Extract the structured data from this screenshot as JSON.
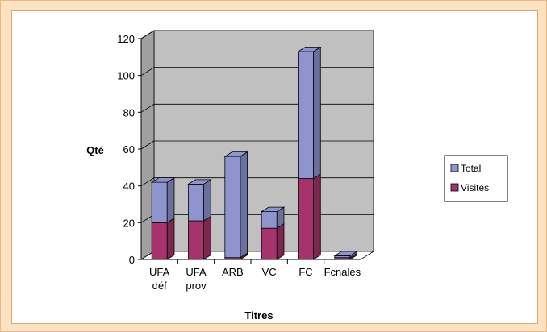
{
  "chart_data": {
    "type": "bar",
    "stacked": true,
    "three_d": true,
    "categories": [
      [
        "UFA",
        "déf"
      ],
      [
        "UFA",
        "prov"
      ],
      [
        "ARB"
      ],
      [
        "VC"
      ],
      [
        "FC"
      ],
      [
        "Fcnales"
      ]
    ],
    "series": [
      {
        "name": "Visités",
        "color": "#a6336b",
        "values": [
          20,
          21,
          1,
          17,
          44,
          1
        ]
      },
      {
        "name": "Total",
        "color": "#8f94cf",
        "values": [
          22,
          20,
          55,
          9,
          69,
          1
        ]
      }
    ],
    "ylabel": "Qté",
    "xlabel": "Titres",
    "ylim": [
      0,
      120
    ],
    "yticks": [
      0,
      20,
      40,
      60,
      80,
      100,
      120
    ],
    "grid": true,
    "legend_position": "right",
    "legend_order": [
      "Total",
      "Visités"
    ]
  }
}
